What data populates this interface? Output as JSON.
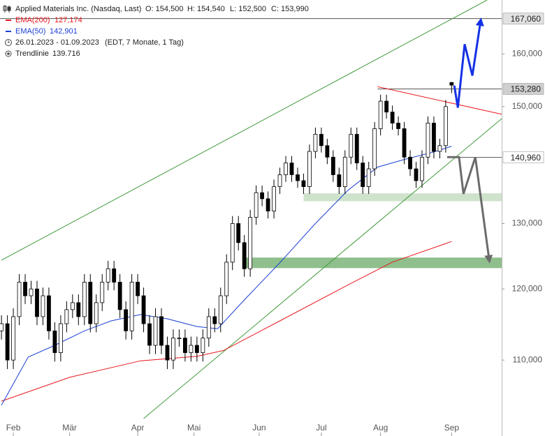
{
  "chart_data": {
    "type": "candlestick",
    "title": "Applied Materials Inc. (Nasdaq, Last)",
    "ohlc_labels": [
      "O: 154,500",
      "H: 154,540",
      "L: 152,500",
      "C: 153,990"
    ],
    "period": "26.01.2023 - 01.09.2023",
    "period_note": "(EDT, 7 Monate, 1 Tag)",
    "trendline_label": "Trendlinie",
    "trendline_value": "139.716",
    "up_color": "#ffffff",
    "down_color": "#000000",
    "x": [
      0,
      2,
      4,
      6,
      8,
      10,
      12,
      14,
      16,
      18,
      20,
      22,
      24,
      26,
      28,
      30,
      32,
      34,
      36,
      38,
      40,
      42,
      44,
      46,
      48,
      50,
      52,
      54,
      56,
      58,
      60,
      62,
      64,
      66,
      68,
      70,
      72,
      74,
      76,
      78,
      80,
      82,
      84,
      86,
      88,
      90,
      92,
      94,
      96,
      98,
      100,
      102,
      104,
      106,
      108,
      110,
      112,
      114,
      116,
      118,
      120,
      122,
      124,
      126,
      128,
      130,
      132,
      134,
      136,
      138,
      140,
      142,
      144,
      146,
      148,
      150,
      152
    ],
    "open": [
      114000,
      115000,
      110000,
      116000,
      121000,
      119000,
      120000,
      116000,
      119000,
      114000,
      111000,
      115000,
      117000,
      118000,
      116000,
      121000,
      115000,
      118000,
      121000,
      123000,
      121000,
      117000,
      114000,
      121000,
      119000,
      115000,
      112000,
      116000,
      112000,
      110000,
      113000,
      113000,
      111000,
      112000,
      111000,
      113000,
      116000,
      115000,
      119000,
      124000,
      130000,
      127000,
      123000,
      131000,
      135000,
      134000,
      132000,
      136000,
      138000,
      140000,
      138000,
      137000,
      136000,
      142000,
      145000,
      143000,
      141000,
      138000,
      136000,
      141000,
      145000,
      140000,
      136000,
      139000,
      146000,
      151000,
      149000,
      147000,
      146000,
      141000,
      139000,
      137000,
      141000,
      147000,
      142000,
      143000,
      154500
    ],
    "high": [
      116200,
      116200,
      117200,
      122200,
      122200,
      121200,
      121200,
      120200,
      120200,
      115200,
      116200,
      118200,
      119200,
      119200,
      122200,
      122200,
      119200,
      122200,
      124200,
      124200,
      122200,
      118200,
      122200,
      122200,
      120200,
      116200,
      117200,
      117200,
      113200,
      114200,
      114200,
      114200,
      113200,
      113200,
      114200,
      117200,
      117200,
      120200,
      125200,
      131200,
      131200,
      128200,
      132200,
      136200,
      136200,
      135200,
      137200,
      139200,
      141200,
      141200,
      139200,
      138200,
      143200,
      146200,
      146200,
      144200,
      142200,
      139200,
      142200,
      146200,
      146200,
      141200,
      140200,
      147200,
      152200,
      152200,
      150200,
      148200,
      147200,
      142200,
      140200,
      142200,
      148200,
      148200,
      144200,
      151200,
      154540
    ],
    "low": [
      112800,
      108800,
      108800,
      114800,
      117800,
      117800,
      114800,
      114800,
      112800,
      109800,
      109800,
      113800,
      115800,
      114800,
      114800,
      113800,
      113800,
      116800,
      119800,
      119800,
      115800,
      112800,
      112800,
      117800,
      113800,
      110800,
      110800,
      110800,
      108800,
      108800,
      111800,
      109800,
      109800,
      109800,
      109800,
      111800,
      113800,
      113800,
      117800,
      122800,
      125800,
      121800,
      121800,
      129800,
      132800,
      130800,
      130800,
      134800,
      136800,
      136800,
      135800,
      134800,
      134800,
      140800,
      141800,
      139800,
      136800,
      134800,
      134800,
      139800,
      138800,
      134800,
      134800,
      137800,
      144800,
      147800,
      145800,
      144800,
      139800,
      137800,
      135800,
      135800,
      139800,
      140800,
      140800,
      141800,
      152500
    ],
    "close": [
      115000,
      110000,
      116000,
      121000,
      119000,
      120000,
      116000,
      119000,
      114000,
      111000,
      115000,
      117000,
      118000,
      116000,
      121000,
      115000,
      118000,
      121000,
      123000,
      121000,
      117000,
      114000,
      121000,
      119000,
      115000,
      112000,
      116000,
      112000,
      110000,
      113000,
      113000,
      111000,
      112000,
      111000,
      113000,
      116000,
      115000,
      119000,
      124000,
      130000,
      127000,
      123000,
      131000,
      135000,
      134000,
      132000,
      136000,
      138000,
      140000,
      138000,
      137000,
      136000,
      142000,
      145000,
      143000,
      141000,
      138000,
      136000,
      141000,
      145000,
      140000,
      136000,
      139000,
      146000,
      151000,
      149000,
      147000,
      146000,
      141000,
      139000,
      137000,
      141000,
      147000,
      142000,
      143000,
      150000,
      153990
    ],
    "series": [
      {
        "name": "EMA(200)",
        "value_label": "127,174",
        "color": "#e8191f",
        "x": [
          0,
          23,
          47,
          66,
          75,
          94,
          117,
          132,
          152
        ],
        "values": [
          104600,
          107700,
          109900,
          110500,
          111300,
          115400,
          120600,
          124000,
          127174
        ]
      },
      {
        "name": "EMA(50)",
        "value_label": "142,901",
        "color": "#1b3fd6",
        "x": [
          0,
          9,
          18,
          28,
          37,
          47,
          56,
          66,
          73,
          82,
          94,
          106,
          117,
          127,
          136,
          146,
          152
        ],
        "values": [
          104100,
          110400,
          112000,
          114000,
          115400,
          116300,
          115700,
          114600,
          114300,
          118400,
          123900,
          130000,
          135400,
          139300,
          140600,
          141900,
          142901
        ]
      }
    ],
    "trendlines": [
      {
        "color": "#3f9a3a",
        "x": [
          0,
          164
        ],
        "values": [
          124300,
          170900
        ]
      },
      {
        "color": "#3f9a3a",
        "x": [
          48,
          168.9
        ],
        "values": [
          102400,
          147800
        ]
      },
      {
        "color": "#e8191f",
        "x": [
          127,
          168.9
        ],
        "values": [
          153700,
          148600
        ]
      }
    ],
    "zones": [
      {
        "color": "#cfe3cc",
        "x": [
          102,
          168.9
        ],
        "values": [
          133600,
          134900
        ]
      },
      {
        "color": "#8fbf8c",
        "x": [
          82,
          168.9
        ],
        "values": [
          123100,
          124700
        ]
      }
    ],
    "arrows": [
      {
        "color": "#1431e6",
        "x": [
          152.9,
          154.1,
          156.4,
          159,
          161.8
        ],
        "values": [
          153900,
          149800,
          161900,
          155800,
          166600
        ]
      },
      {
        "color": "#6b6b6b",
        "x": [
          150.5,
          154.5,
          156,
          160,
          164.7
        ],
        "values": [
          141000,
          141000,
          134800,
          141000,
          124300
        ]
      }
    ],
    "price_labels": [
      {
        "value": 167060,
        "label": "167,060",
        "x": -0.5,
        "bg": "#e2e2e2"
      },
      {
        "value": 153280,
        "label": "153,280",
        "x": 127,
        "bg": "#cfcfcf"
      },
      {
        "value": 140960,
        "label": "140,960",
        "x": 150.5,
        "bg": "#ffffff"
      }
    ],
    "log_scale": true,
    "xlim": [
      -0.5,
      168.9
    ],
    "ylim": [
      102400,
      170900
    ],
    "xticks": [
      {
        "value": 4,
        "label": "Feb"
      },
      {
        "value": 23,
        "label": "Mär"
      },
      {
        "value": 46,
        "label": "Apr"
      },
      {
        "value": 65,
        "label": "Mai"
      },
      {
        "value": 87,
        "label": "Jun"
      },
      {
        "value": 108,
        "label": "Jul"
      },
      {
        "value": 128,
        "label": "Aug"
      },
      {
        "value": 152,
        "label": "Sep"
      }
    ],
    "yticks": [
      {
        "value": 110000,
        "label": "110,000"
      },
      {
        "value": 120000,
        "label": "120,000"
      },
      {
        "value": 130000,
        "label": "130,000"
      },
      {
        "value": 150000,
        "label": "150,000"
      },
      {
        "value": 160000,
        "label": "160,000"
      }
    ]
  }
}
